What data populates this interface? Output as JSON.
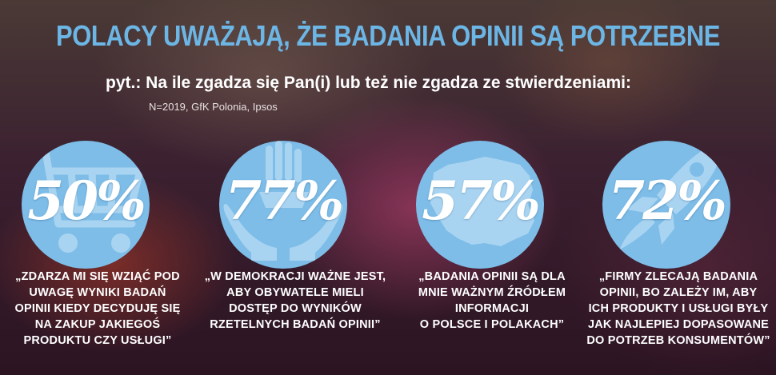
{
  "header": {
    "title": "POLACY UWAŻAJĄ, ŻE BADANIA OPINII SĄ POTRZEBNE",
    "question": "pyt.: Na ile zgadza się Pan(i) lub też nie zgadza ze stwierdzeniami:",
    "source": "N=2019, GfK Polonia, Ipsos"
  },
  "colors": {
    "accent": "#6cb6e6",
    "circle": "#7dbde8",
    "icon": "#a8d3f0",
    "text": "#ffffff"
  },
  "stats": [
    {
      "value": "50%",
      "icon": "shopping-cart-icon",
      "caption": [
        "„ZDARZA MI SIĘ WZIĄĆ POD",
        "UWAGĘ WYNIKI BADAŃ",
        "OPINII KIEDY DECYDUJĘ SIĘ",
        "NA ZAKUP JAKIEGOŚ",
        "PRODUKTU CZY USŁUGI”"
      ]
    },
    {
      "value": "77%",
      "icon": "raised-hands-icon",
      "caption": [
        "„W DEMOKRACJI WAŻNE JEST,",
        "ABY OBYWATELE MIELI",
        "DOSTĘP DO WYNIKÓW",
        "RZETELNYCH BADAŃ OPINII”"
      ]
    },
    {
      "value": "57%",
      "icon": "poland-map-icon",
      "caption": [
        "„BADANIA OPINII SĄ DLA",
        "MNIE WAŻNYM ŹRÓDŁEM",
        "INFORMACJI",
        "O POLSCE I POLAKACH”"
      ]
    },
    {
      "value": "72%",
      "icon": "rocket-icon",
      "caption": [
        "„FIRMY ZLECAJĄ BADANIA",
        "OPINII, BO ZALEŻY IM, ABY",
        "ICH PRODUKTY I USŁUGI BYŁY",
        "JAK NAJLEPIEJ DOPASOWANE",
        "DO POTRZEB KONSUMENTÓW”"
      ]
    }
  ]
}
